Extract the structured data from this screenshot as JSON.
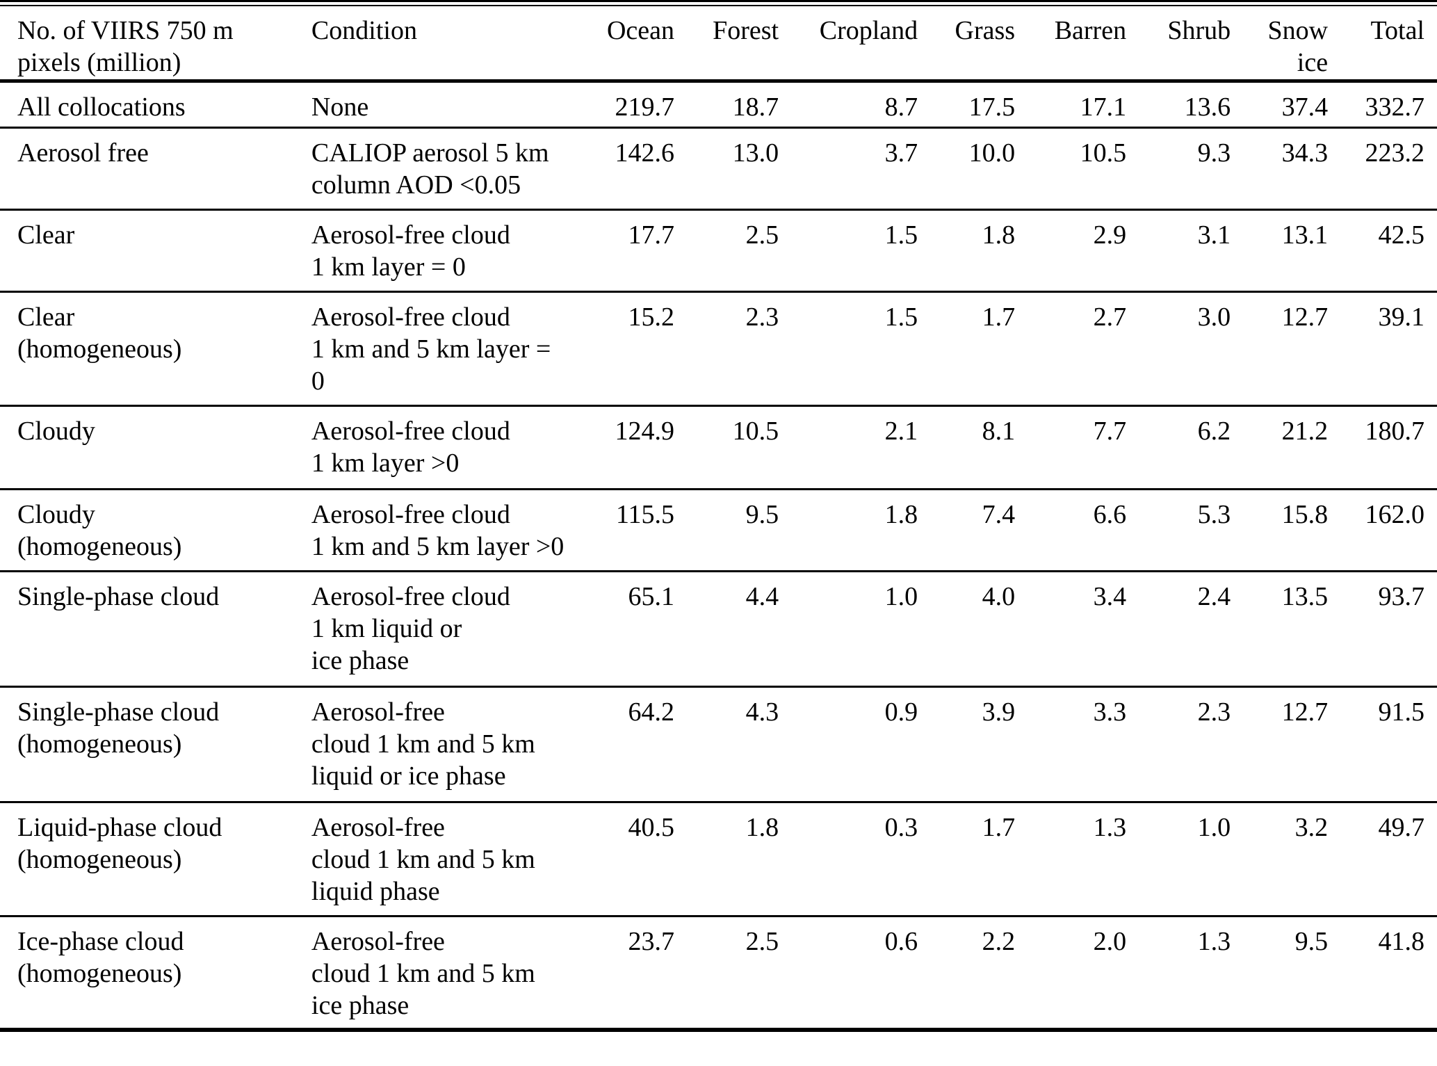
{
  "table": {
    "header": {
      "pixels_label": "No. of VIIRS 750 m\npixels (million)",
      "condition_label": "Condition",
      "columns": [
        "Ocean",
        "Forest",
        "Cropland",
        "Grass",
        "Barren",
        "Shrub",
        "Snow\nice",
        "Total"
      ]
    },
    "rows": [
      {
        "label": "All collocations",
        "condition": "None",
        "values": [
          "219.7",
          "18.7",
          "8.7",
          "17.5",
          "17.1",
          "13.6",
          "37.4",
          "332.7"
        ]
      },
      {
        "label": "Aerosol free",
        "condition": "CALIOP aerosol 5 km\ncolumn AOD <0.05",
        "values": [
          "142.6",
          "13.0",
          "3.7",
          "10.0",
          "10.5",
          "9.3",
          "34.3",
          "223.2"
        ]
      },
      {
        "label": "Clear",
        "condition": "Aerosol-free cloud\n1 km layer = 0",
        "values": [
          "17.7",
          "2.5",
          "1.5",
          "1.8",
          "2.9",
          "3.1",
          "13.1",
          "42.5"
        ]
      },
      {
        "label": "Clear\n(homogeneous)",
        "condition": "Aerosol-free cloud\n1 km and 5 km layer =\n0",
        "values": [
          "15.2",
          "2.3",
          "1.5",
          "1.7",
          "2.7",
          "3.0",
          "12.7",
          "39.1"
        ]
      },
      {
        "label": "Cloudy",
        "condition": "Aerosol-free cloud\n1 km layer >0",
        "values": [
          "124.9",
          "10.5",
          "2.1",
          "8.1",
          "7.7",
          "6.2",
          "21.2",
          "180.7"
        ]
      },
      {
        "label": "Cloudy\n(homogeneous)",
        "condition": "Aerosol-free cloud\n1 km and 5 km layer >0",
        "values": [
          "115.5",
          "9.5",
          "1.8",
          "7.4",
          "6.6",
          "5.3",
          "15.8",
          "162.0"
        ]
      },
      {
        "label": "Single-phase cloud",
        "condition": "Aerosol-free cloud\n1 km liquid or\nice phase",
        "values": [
          "65.1",
          "4.4",
          "1.0",
          "4.0",
          "3.4",
          "2.4",
          "13.5",
          "93.7"
        ]
      },
      {
        "label": "Single-phase cloud\n(homogeneous)",
        "condition": "Aerosol-free\ncloud 1 km and 5 km\nliquid or ice phase",
        "values": [
          "64.2",
          "4.3",
          "0.9",
          "3.9",
          "3.3",
          "2.3",
          "12.7",
          "91.5"
        ]
      },
      {
        "label": "Liquid-phase cloud\n(homogeneous)",
        "condition": "Aerosol-free\ncloud 1 km and 5 km\nliquid phase",
        "values": [
          "40.5",
          "1.8",
          "0.3",
          "1.7",
          "1.3",
          "1.0",
          "3.2",
          "49.7"
        ]
      },
      {
        "label": "Ice-phase cloud\n(homogeneous)",
        "condition": "Aerosol-free\ncloud 1 km and 5 km\nice phase",
        "values": [
          "23.7",
          "2.5",
          "0.6",
          "2.2",
          "2.0",
          "1.3",
          "9.5",
          "41.8"
        ]
      }
    ]
  }
}
